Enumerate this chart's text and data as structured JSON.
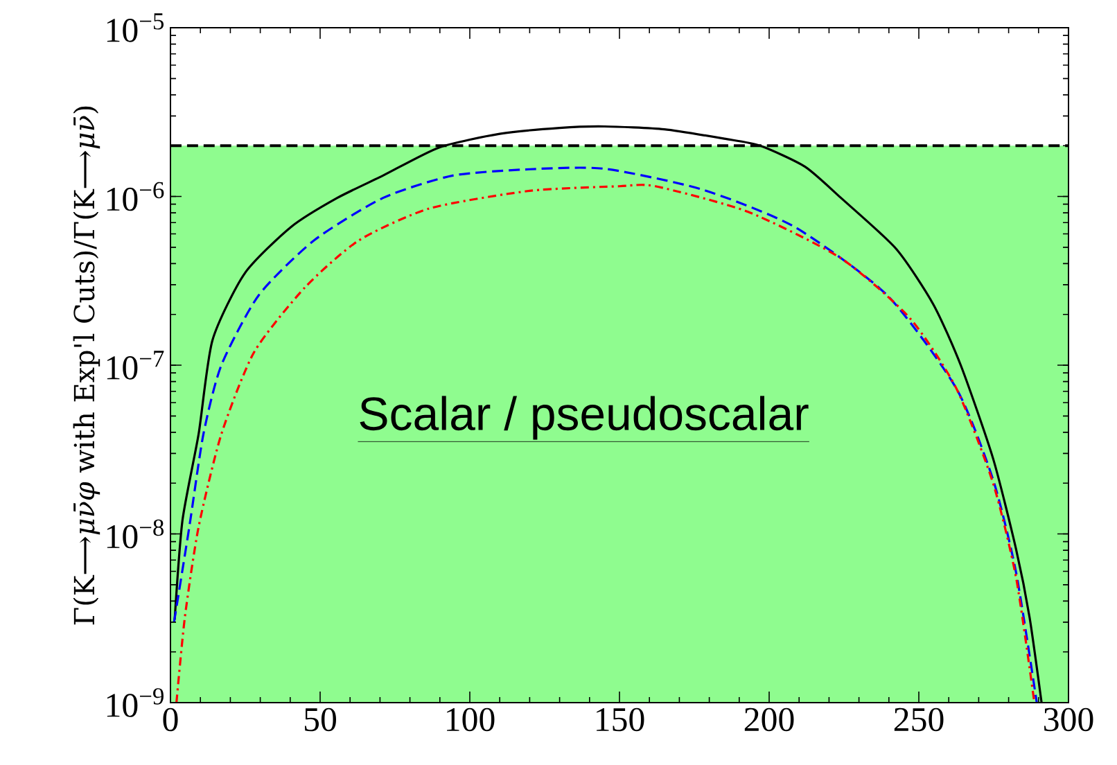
{
  "chart_data": {
    "type": "line",
    "ylabel": "Γ(K⟶*μν̄φ* with Exp'l Cuts)/Γ(K⟶*μν̄*)",
    "log": "y",
    "xlim": [
      0,
      300
    ],
    "xticks": [
      0,
      50,
      100,
      150,
      200,
      250,
      300
    ],
    "ylim": [
      1e-09,
      1e-05
    ],
    "yticks": [
      {
        "value": 1e-09,
        "label": "10$^{−9}$"
      },
      {
        "value": 1e-08,
        "label": "10$^{−8}$"
      },
      {
        "value": 1e-07,
        "label": "10$^{−7}$"
      },
      {
        "value": 1e-06,
        "label": "10$^{−6}$"
      },
      {
        "value": 1e-05,
        "label": "10$^{−5}$"
      }
    ],
    "series": [
      {
        "color": "#000000",
        "line_style": "solid",
        "x": [
          1.4,
          4,
          9.4,
          14,
          24.8,
          40.3,
          55.7,
          71,
          89.7,
          110,
          130,
          145,
          165,
          185,
          197,
          212,
          224,
          242.4,
          254.8,
          264,
          274.8,
          282.5,
          287,
          291
        ],
        "values": [
          3.1e-09,
          1.2e-08,
          3.9e-08,
          1.4e-07,
          3.5e-07,
          6.6e-07,
          9.8e-07,
          1.33e-06,
          1.95e-06,
          2.35e-06,
          2.55e-06,
          2.6e-06,
          2.5e-06,
          2.2e-06,
          2e-06,
          1.5e-06,
          9.8e-07,
          4.9e-07,
          2.3e-07,
          1e-07,
          2.8e-08,
          8.1e-09,
          3.2e-09,
          1e-09
        ]
      },
      {
        "color": "#0000ff",
        "line_style": "dashed",
        "x": [
          1.2,
          6.3,
          11,
          17,
          29.5,
          48,
          71,
          94.3,
          120,
          145,
          177.6,
          208.5,
          239.4,
          262.5,
          274.8,
          282.5,
          289.4
        ],
        "values": [
          3e-09,
          1.1e-08,
          3.9e-08,
          1e-07,
          2.6e-07,
          5.5e-07,
          9.8e-07,
          1.33e-06,
          1.45e-06,
          1.46e-06,
          1.1e-06,
          6.6e-07,
          2.6e-07,
          7.3e-08,
          2.1e-08,
          5.9e-09,
          1e-09
        ]
      },
      {
        "color": "#ff0000",
        "line_style": "dashdot",
        "x": [
          2,
          4.8,
          9.4,
          17,
          28,
          45,
          63,
          86.6,
          120,
          150,
          162,
          193,
          224,
          247,
          262.5,
          274.8,
          282.5,
          288.6
        ],
        "values": [
          1e-09,
          3.2e-09,
          1.1e-08,
          3.9e-08,
          1.2e-07,
          2.9e-07,
          5.5e-07,
          8.5e-07,
          1.08e-06,
          1.15e-06,
          1.15e-06,
          8.1e-07,
          4.3e-07,
          1.9e-07,
          7.3e-08,
          2e-08,
          5.5e-09,
          1e-09
        ]
      }
    ],
    "ref_lines": [
      {
        "axis": "y",
        "value": 2e-06,
        "line_style": "dashed",
        "color": "#000000"
      }
    ],
    "bands": [
      {
        "axis": "y",
        "from": 1e-09,
        "to": 2e-06,
        "color": "#8ffc8f"
      }
    ],
    "annotations": [
      "Scalar / pseudoscalar"
    ]
  }
}
